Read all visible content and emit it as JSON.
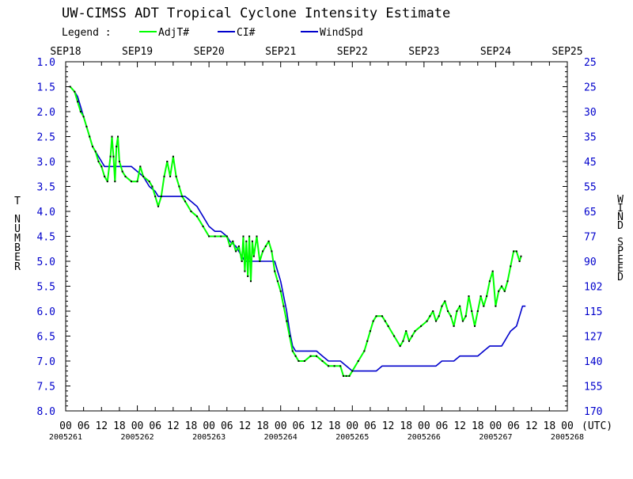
{
  "page": {
    "title": "UW-CIMSS ADT Tropical Cyclone Intensity Estimate",
    "legend_label": "Legend :",
    "utc_label": "(UTC)"
  },
  "chart_data": {
    "type": "line",
    "title": "UW-CIMSS ADT Tropical Cyclone Intensity Estimate",
    "ylabel_left": "T NUMBER",
    "ylabel_right": "WIND SPEED",
    "ylim": [
      1.0,
      8.0
    ],
    "y_inverted": true,
    "xlim_hours": [
      0,
      168
    ],
    "date_labels_top": [
      "SEP18",
      "SEP19",
      "SEP20",
      "SEP21",
      "SEP22",
      "SEP23",
      "SEP24",
      "SEP25"
    ],
    "julian_labels": [
      "2005261",
      "2005262",
      "2005263",
      "2005264",
      "2005265",
      "2005266",
      "2005267",
      "2005268"
    ],
    "hour_labels": [
      "00",
      "06",
      "12",
      "18"
    ],
    "left_ticks": [
      "1.0",
      "1.5",
      "2.0",
      "2.5",
      "3.0",
      "3.5",
      "4.0",
      "4.5",
      "5.0",
      "5.5",
      "6.0",
      "6.5",
      "7.0",
      "7.5",
      "8.0"
    ],
    "right_ticks": [
      "25",
      "25",
      "30",
      "35",
      "45",
      "55",
      "65",
      "77",
      "90",
      "102",
      "115",
      "127",
      "140",
      "155",
      "170"
    ],
    "legend": [
      {
        "name": "AdjT#",
        "color": "#00ff00"
      },
      {
        "name": "CI#",
        "color": "#0000cc"
      },
      {
        "name": "WindSpd",
        "color": "#0000cc"
      }
    ],
    "series": [
      {
        "name": "AdjT#",
        "color": "#00ff00",
        "points": [
          [
            1.5,
            1.5
          ],
          [
            3,
            1.6
          ],
          [
            4,
            1.8
          ],
          [
            5,
            2.0
          ],
          [
            6,
            2.1
          ],
          [
            7,
            2.3
          ],
          [
            8,
            2.5
          ],
          [
            9,
            2.7
          ],
          [
            10,
            2.8
          ],
          [
            11,
            3.0
          ],
          [
            12,
            3.1
          ],
          [
            13,
            3.3
          ],
          [
            14,
            3.4
          ],
          [
            15,
            2.9
          ],
          [
            15.5,
            2.5
          ],
          [
            16,
            2.9
          ],
          [
            16.5,
            3.4
          ],
          [
            17,
            2.7
          ],
          [
            17.5,
            2.5
          ],
          [
            18,
            3.0
          ],
          [
            19,
            3.2
          ],
          [
            20,
            3.3
          ],
          [
            22,
            3.4
          ],
          [
            24,
            3.4
          ],
          [
            25,
            3.1
          ],
          [
            26,
            3.3
          ],
          [
            28,
            3.4
          ],
          [
            29,
            3.5
          ],
          [
            30,
            3.7
          ],
          [
            31,
            3.9
          ],
          [
            32,
            3.7
          ],
          [
            33,
            3.3
          ],
          [
            34,
            3.0
          ],
          [
            35,
            3.3
          ],
          [
            36,
            2.9
          ],
          [
            37,
            3.3
          ],
          [
            38,
            3.5
          ],
          [
            39,
            3.7
          ],
          [
            40,
            3.8
          ],
          [
            42,
            4.0
          ],
          [
            44,
            4.1
          ],
          [
            46,
            4.3
          ],
          [
            48,
            4.5
          ],
          [
            50,
            4.5
          ],
          [
            52,
            4.5
          ],
          [
            54,
            4.5
          ],
          [
            55,
            4.7
          ],
          [
            56,
            4.6
          ],
          [
            57,
            4.8
          ],
          [
            58,
            4.7
          ],
          [
            59,
            5.0
          ],
          [
            59.5,
            4.5
          ],
          [
            60,
            5.2
          ],
          [
            60.5,
            4.6
          ],
          [
            61,
            5.3
          ],
          [
            61.5,
            4.5
          ],
          [
            62,
            5.4
          ],
          [
            62.5,
            4.6
          ],
          [
            63,
            4.9
          ],
          [
            64,
            4.5
          ],
          [
            65,
            5.0
          ],
          [
            66,
            4.8
          ],
          [
            67,
            4.7
          ],
          [
            68,
            4.6
          ],
          [
            69,
            4.8
          ],
          [
            70,
            5.2
          ],
          [
            71,
            5.4
          ],
          [
            72,
            5.6
          ],
          [
            73,
            5.9
          ],
          [
            74,
            6.2
          ],
          [
            75,
            6.5
          ],
          [
            76,
            6.8
          ],
          [
            77,
            6.9
          ],
          [
            78,
            7.0
          ],
          [
            80,
            7.0
          ],
          [
            82,
            6.9
          ],
          [
            84,
            6.9
          ],
          [
            86,
            7.0
          ],
          [
            88,
            7.1
          ],
          [
            90,
            7.1
          ],
          [
            92,
            7.1
          ],
          [
            93,
            7.3
          ],
          [
            94,
            7.3
          ],
          [
            95,
            7.3
          ],
          [
            96,
            7.2
          ],
          [
            98,
            7.0
          ],
          [
            100,
            6.8
          ],
          [
            101,
            6.6
          ],
          [
            102,
            6.4
          ],
          [
            103,
            6.2
          ],
          [
            104,
            6.1
          ],
          [
            106,
            6.1
          ],
          [
            107,
            6.2
          ],
          [
            108,
            6.3
          ],
          [
            110,
            6.5
          ],
          [
            112,
            6.7
          ],
          [
            113,
            6.6
          ],
          [
            114,
            6.4
          ],
          [
            115,
            6.6
          ],
          [
            116,
            6.5
          ],
          [
            117,
            6.4
          ],
          [
            119,
            6.3
          ],
          [
            121,
            6.2
          ],
          [
            122,
            6.1
          ],
          [
            123,
            6.0
          ],
          [
            124,
            6.2
          ],
          [
            125,
            6.1
          ],
          [
            126,
            5.9
          ],
          [
            127,
            5.8
          ],
          [
            128,
            6.0
          ],
          [
            129,
            6.1
          ],
          [
            130,
            6.3
          ],
          [
            131,
            6.0
          ],
          [
            132,
            5.9
          ],
          [
            133,
            6.2
          ],
          [
            134,
            6.1
          ],
          [
            135,
            5.7
          ],
          [
            136,
            6.0
          ],
          [
            137,
            6.3
          ],
          [
            138,
            6.0
          ],
          [
            139,
            5.7
          ],
          [
            140,
            5.9
          ],
          [
            141,
            5.7
          ],
          [
            142,
            5.4
          ],
          [
            143,
            5.2
          ],
          [
            144,
            5.9
          ],
          [
            145,
            5.6
          ],
          [
            146,
            5.5
          ],
          [
            147,
            5.6
          ],
          [
            148,
            5.4
          ],
          [
            149,
            5.1
          ],
          [
            150,
            4.8
          ],
          [
            151,
            4.8
          ],
          [
            152,
            5.0
          ],
          [
            152.5,
            4.9
          ]
        ]
      },
      {
        "name": "CI#",
        "color": "#0000cc",
        "points": [
          [
            1.5,
            1.5
          ],
          [
            3,
            1.6
          ],
          [
            4,
            1.7
          ],
          [
            5,
            1.9
          ],
          [
            6,
            2.1
          ],
          [
            7,
            2.3
          ],
          [
            8,
            2.5
          ],
          [
            9,
            2.7
          ],
          [
            10,
            2.8
          ],
          [
            11,
            2.9
          ],
          [
            12,
            3.0
          ],
          [
            13,
            3.1
          ],
          [
            22,
            3.1
          ],
          [
            24,
            3.2
          ],
          [
            26,
            3.3
          ],
          [
            28,
            3.5
          ],
          [
            30,
            3.6
          ],
          [
            31,
            3.7
          ],
          [
            40,
            3.7
          ],
          [
            42,
            3.8
          ],
          [
            44,
            3.9
          ],
          [
            46,
            4.1
          ],
          [
            48,
            4.3
          ],
          [
            50,
            4.4
          ],
          [
            52,
            4.4
          ],
          [
            54,
            4.5
          ],
          [
            55,
            4.6
          ],
          [
            57,
            4.7
          ],
          [
            58,
            4.8
          ],
          [
            59,
            4.9
          ],
          [
            60,
            5.0
          ],
          [
            70,
            5.0
          ],
          [
            71,
            5.2
          ],
          [
            72,
            5.4
          ],
          [
            73,
            5.7
          ],
          [
            74,
            6.0
          ],
          [
            75,
            6.4
          ],
          [
            76,
            6.7
          ],
          [
            77,
            6.8
          ],
          [
            84,
            6.8
          ],
          [
            86,
            6.9
          ],
          [
            88,
            7.0
          ],
          [
            92,
            7.0
          ],
          [
            94,
            7.1
          ],
          [
            96,
            7.2
          ],
          [
            104,
            7.2
          ],
          [
            106,
            7.1
          ],
          [
            124,
            7.1
          ],
          [
            126,
            7.0
          ],
          [
            130,
            7.0
          ],
          [
            132,
            6.9
          ],
          [
            138,
            6.9
          ],
          [
            140,
            6.8
          ],
          [
            142,
            6.7
          ],
          [
            146,
            6.7
          ],
          [
            147,
            6.6
          ],
          [
            148,
            6.5
          ],
          [
            149,
            6.4
          ],
          [
            151,
            6.3
          ],
          [
            152,
            6.1
          ],
          [
            153,
            5.9
          ],
          [
            154,
            5.9
          ]
        ]
      }
    ]
  }
}
